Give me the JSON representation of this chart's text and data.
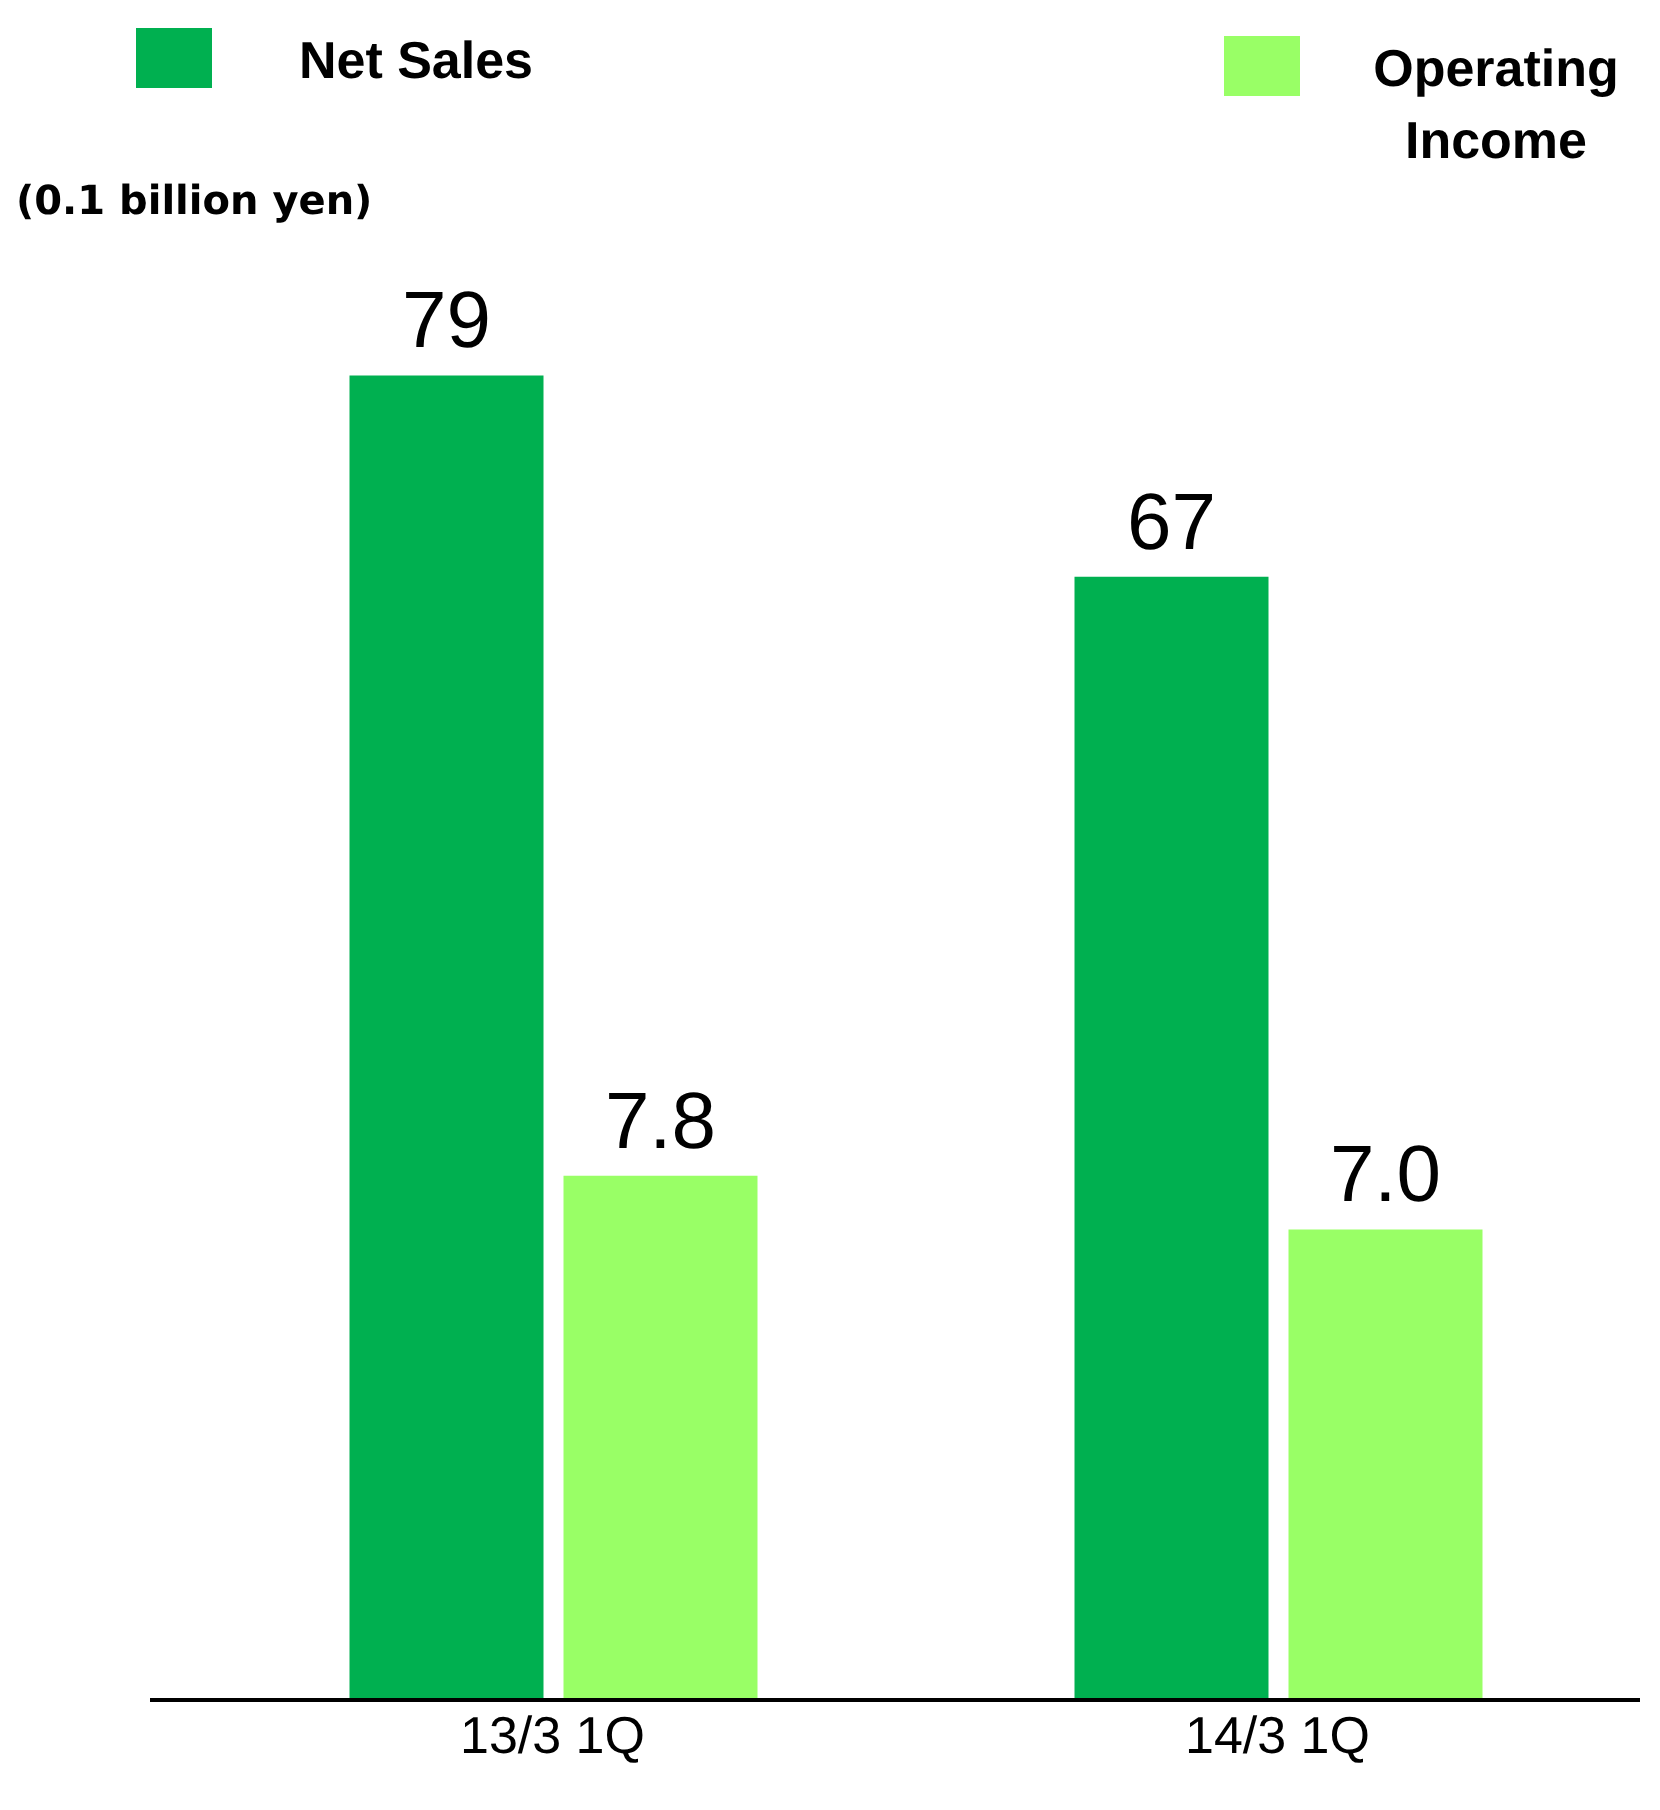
{
  "chart_data": {
    "type": "bar",
    "ylabel": "(0.1 billion yen)",
    "categories": [
      "13/3  1Q",
      "14/3  1Q"
    ],
    "series": [
      {
        "name": "Net Sales",
        "color": "#00b050",
        "values": [
          79,
          67
        ]
      },
      {
        "name": "Operating Income",
        "color": "#99ff66",
        "values": [
          7.8,
          7.0
        ],
        "axis": "y2",
        "value_labels": [
          "7.8",
          "7.0"
        ]
      }
    ],
    "data_labels": true,
    "legend": "top",
    "grid": false,
    "tick_labels": "x"
  }
}
